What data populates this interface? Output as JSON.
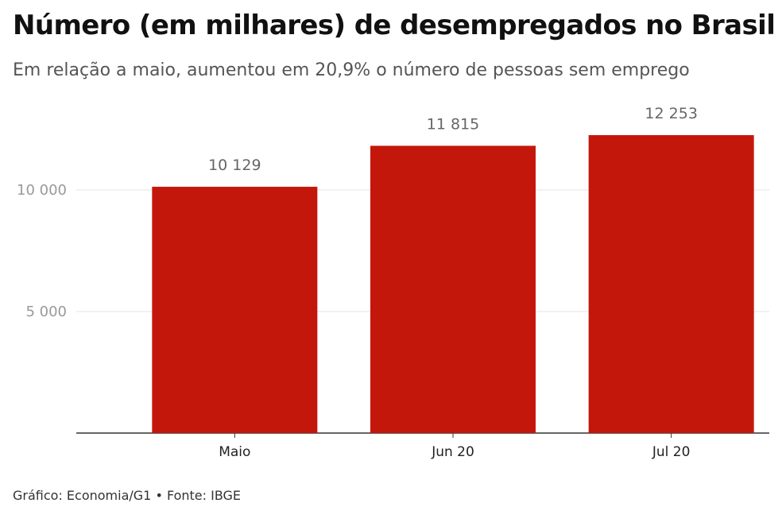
{
  "title": "Número (em milhares) de desempregados no Brasil",
  "subtitle": "Em relação a maio, aumentou em 20,9% o número de pessoas sem emprego",
  "footer": "Gráfico: Economia/G1 • Fonte: IBGE",
  "colors": {
    "bar": "#c4170c",
    "grid": "#e3e3e3",
    "axis": "#333333",
    "tick_label": "#999999",
    "value_label": "#666666"
  },
  "chart_data": {
    "type": "bar",
    "title": "Número (em milhares) de desempregados no Brasil",
    "subtitle": "Em relação a maio, aumentou em 20,9% o número de pessoas sem emprego",
    "xlabel": "",
    "ylabel": "",
    "categories": [
      "Maio",
      "Jun 20",
      "Jul 20"
    ],
    "values": [
      10129,
      11815,
      12253
    ],
    "value_labels": [
      "10 129",
      "11 815",
      "12 253"
    ],
    "ylim": [
      0,
      13000
    ],
    "yticks": [
      5000,
      10000
    ],
    "ytick_labels": [
      "5 000",
      "10 000"
    ],
    "grid": true,
    "legend": "none"
  }
}
